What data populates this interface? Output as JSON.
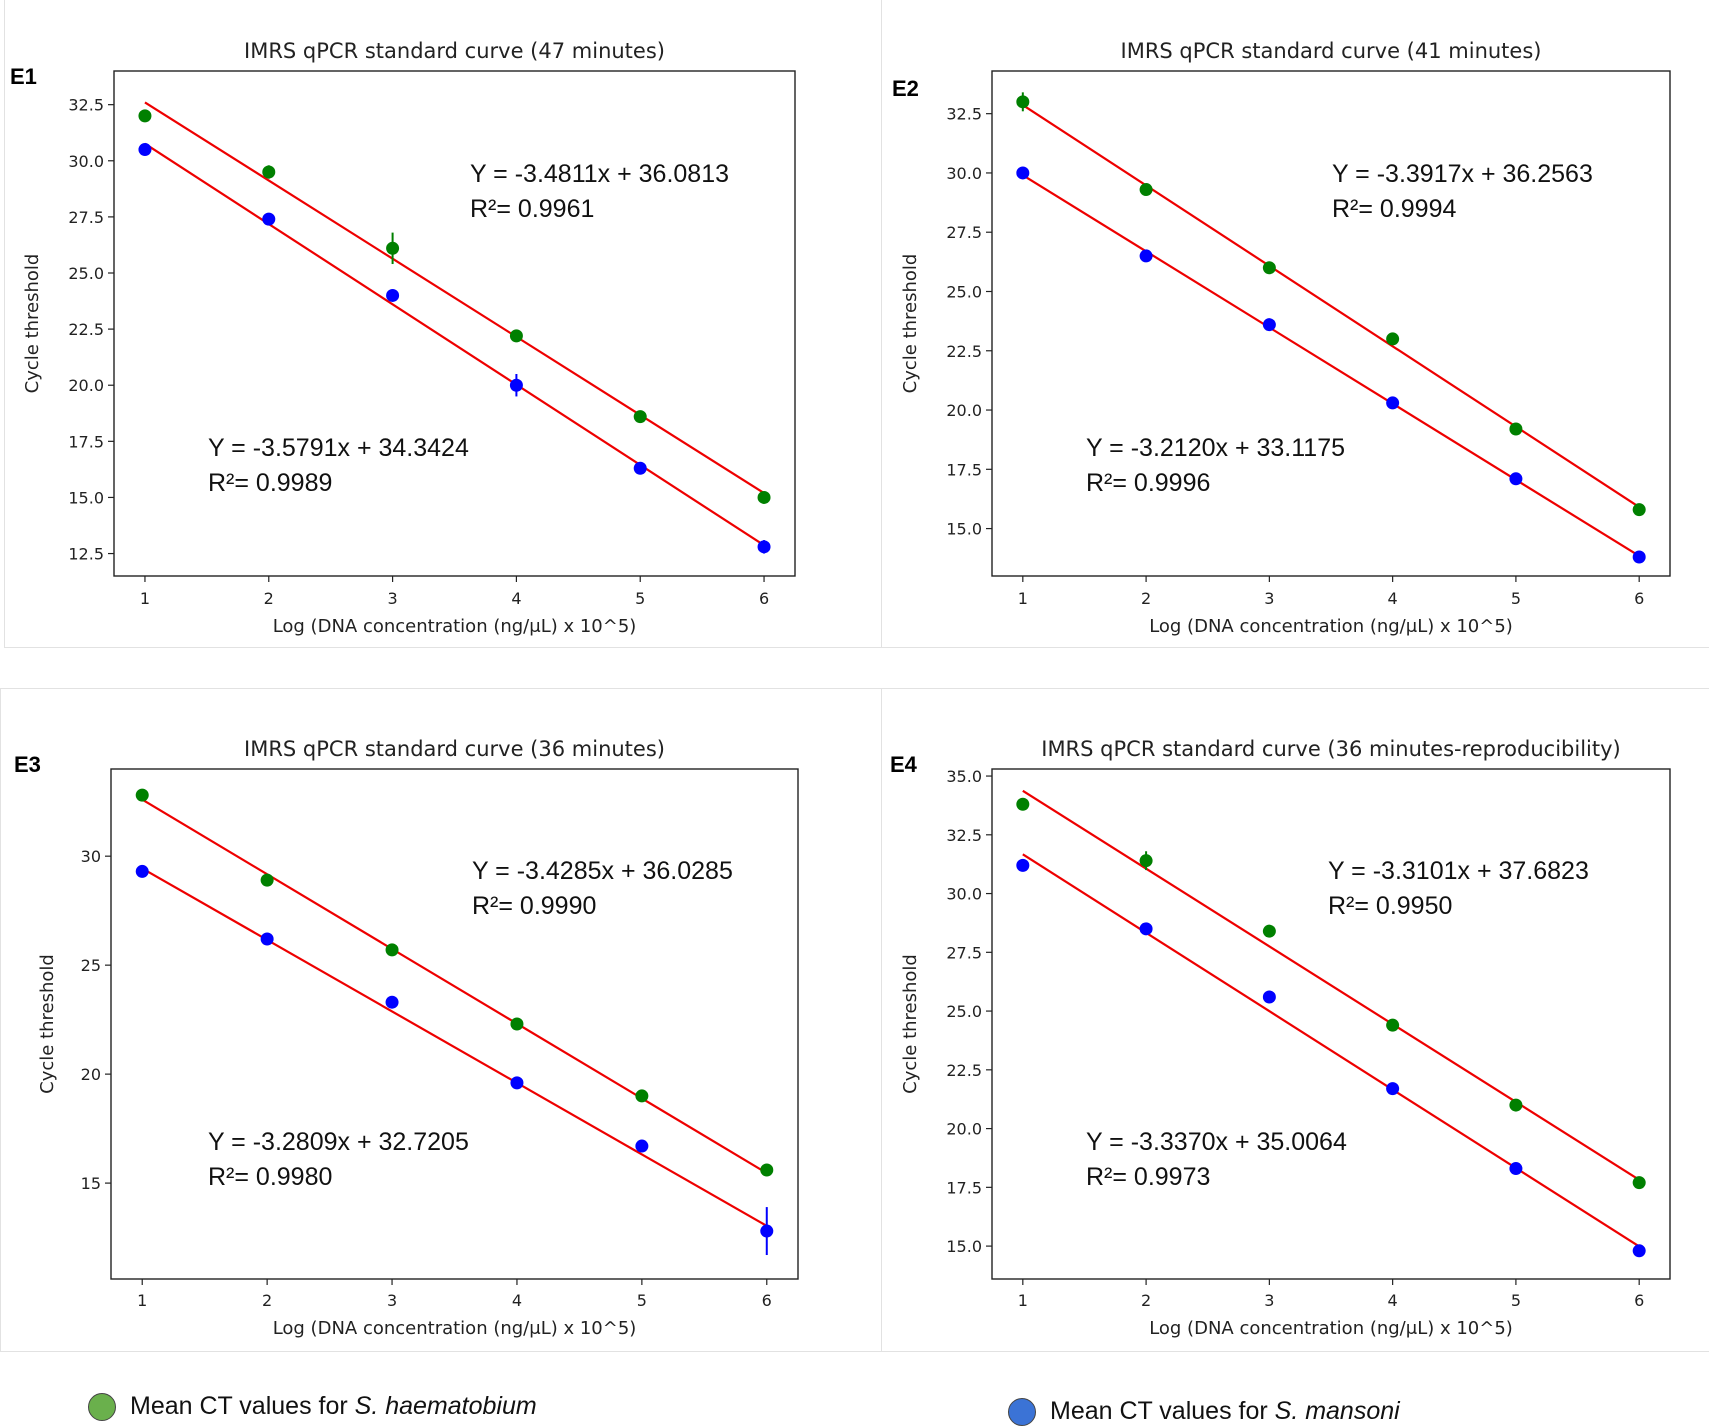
{
  "colors": {
    "haematobium": "#008000",
    "mansoni": "#0000ff",
    "fit": "#ee0000",
    "legend_haematobium": "#6ab04c",
    "legend_mansoni": "#3b73d6"
  },
  "legend": {
    "haematobium_prefix": "Mean CT values for ",
    "haematobium_species": "S. haematobium",
    "mansoni_prefix": "Mean CT values for ",
    "mansoni_species": "S. mansoni"
  },
  "chart_data": [
    {
      "panel": "E1",
      "type": "scatter",
      "title": "IMRS qPCR standard curve (47 minutes)",
      "xlabel": "Log (DNA concentration (ng/μL) x 10^5)",
      "ylabel": "Cycle threshold",
      "xlim": [
        0.75,
        6.25
      ],
      "ylim": [
        11.5,
        34.0
      ],
      "yticks": [
        12.5,
        15.0,
        17.5,
        20.0,
        22.5,
        25.0,
        27.5,
        30.0,
        32.5
      ],
      "ydec": 1,
      "xticks": [
        1,
        2,
        3,
        4,
        5,
        6
      ],
      "series": [
        {
          "name": "S. haematobium",
          "color": "haematobium",
          "x": [
            1,
            2,
            3,
            4,
            5,
            6
          ],
          "y": [
            32.0,
            29.5,
            26.1,
            22.2,
            18.6,
            15.0
          ],
          "err": [
            0.2,
            0.3,
            0.7,
            0.2,
            0.2,
            0.2
          ],
          "slope": -3.4811,
          "intercept": 36.0813,
          "eq_label": "Y = -3.4811x + 36.0813",
          "r2_label": "R²= 0.9961"
        },
        {
          "name": "S. mansoni",
          "color": "mansoni",
          "x": [
            1,
            2,
            3,
            4,
            5,
            6
          ],
          "y": [
            30.5,
            27.4,
            24.0,
            20.0,
            16.3,
            12.8
          ],
          "err": [
            0.2,
            0.2,
            0.2,
            0.5,
            0.2,
            0.3
          ],
          "slope": -3.5791,
          "intercept": 34.3424,
          "eq_label": "Y = -3.5791x + 34.3424",
          "r2_label": "R²= 0.9989"
        }
      ]
    },
    {
      "panel": "E2",
      "type": "scatter",
      "title": "IMRS qPCR standard curve (41 minutes)",
      "xlabel": "Log (DNA concentration (ng/μL) x 10^5)",
      "ylabel": "Cycle threshold",
      "xlim": [
        0.75,
        6.25
      ],
      "ylim": [
        13.0,
        34.3
      ],
      "yticks": [
        15.0,
        17.5,
        20.0,
        22.5,
        25.0,
        27.5,
        30.0,
        32.5
      ],
      "ydec": 1,
      "xticks": [
        1,
        2,
        3,
        4,
        5,
        6
      ],
      "series": [
        {
          "name": "S. haematobium",
          "color": "haematobium",
          "x": [
            1,
            2,
            3,
            4,
            5,
            6
          ],
          "y": [
            33.0,
            29.3,
            26.0,
            23.0,
            19.2,
            15.8
          ],
          "err": [
            0.4,
            0.2,
            0.2,
            0.2,
            0.2,
            0.2
          ],
          "slope": -3.3917,
          "intercept": 36.2563,
          "eq_label": "Y = -3.3917x + 36.2563",
          "r2_label": "R²= 0.9994"
        },
        {
          "name": "S. mansoni",
          "color": "mansoni",
          "x": [
            1,
            2,
            3,
            4,
            5,
            6
          ],
          "y": [
            30.0,
            26.5,
            23.6,
            20.3,
            17.1,
            13.8
          ],
          "err": [
            0.2,
            0.2,
            0.2,
            0.2,
            0.2,
            0.2
          ],
          "slope": -3.212,
          "intercept": 33.1175,
          "eq_label": "Y = -3.2120x + 33.1175",
          "r2_label": "R²= 0.9996"
        }
      ]
    },
    {
      "panel": "E3",
      "type": "scatter",
      "title": "IMRS qPCR standard curve (36 minutes)",
      "xlabel": "Log (DNA concentration (ng/μL) x 10^5)",
      "ylabel": "Cycle threshold",
      "xlim": [
        0.75,
        6.25
      ],
      "ylim": [
        10.6,
        34.0
      ],
      "yticks": [
        15,
        20,
        25,
        30
      ],
      "ydec": 0,
      "xticks": [
        1,
        2,
        3,
        4,
        5,
        6
      ],
      "series": [
        {
          "name": "S. haematobium",
          "color": "haematobium",
          "x": [
            1,
            2,
            3,
            4,
            5,
            6
          ],
          "y": [
            32.8,
            28.9,
            25.7,
            22.3,
            19.0,
            15.6
          ],
          "err": [
            0.2,
            0.2,
            0.2,
            0.2,
            0.2,
            0.2
          ],
          "slope": -3.4285,
          "intercept": 36.0285,
          "eq_label": "Y = -3.4285x + 36.0285",
          "r2_label": "R²= 0.9990"
        },
        {
          "name": "S. mansoni",
          "color": "mansoni",
          "x": [
            1,
            2,
            3,
            4,
            5,
            6
          ],
          "y": [
            29.3,
            26.2,
            23.3,
            19.6,
            16.7,
            12.8
          ],
          "err": [
            0.2,
            0.2,
            0.2,
            0.2,
            0.2,
            1.1
          ],
          "slope": -3.2809,
          "intercept": 32.7205,
          "eq_label": "Y = -3.2809x + 32.7205",
          "r2_label": "R²= 0.9980"
        }
      ]
    },
    {
      "panel": "E4",
      "type": "scatter",
      "title": "IMRS qPCR standard curve (36 minutes-reproducibility)",
      "xlabel": "Log (DNA concentration (ng/μL) x 10^5)",
      "ylabel": "Cycle threshold",
      "xlim": [
        0.75,
        6.25
      ],
      "ylim": [
        13.6,
        35.3
      ],
      "yticks": [
        15.0,
        17.5,
        20.0,
        22.5,
        25.0,
        27.5,
        30.0,
        32.5,
        35.0
      ],
      "ydec": 1,
      "xticks": [
        1,
        2,
        3,
        4,
        5,
        6
      ],
      "series": [
        {
          "name": "S. haematobium",
          "color": "haematobium",
          "x": [
            1,
            2,
            3,
            4,
            5,
            6
          ],
          "y": [
            33.8,
            31.4,
            28.4,
            24.4,
            21.0,
            17.7
          ],
          "err": [
            0.2,
            0.4,
            0.2,
            0.2,
            0.2,
            0.2
          ],
          "slope": -3.3101,
          "intercept": 37.6823,
          "eq_label": "Y = -3.3101x + 37.6823",
          "r2_label": "R²= 0.9950"
        },
        {
          "name": "S. mansoni",
          "color": "mansoni",
          "x": [
            1,
            2,
            3,
            4,
            5,
            6
          ],
          "y": [
            31.2,
            28.5,
            25.6,
            21.7,
            18.3,
            14.8
          ],
          "err": [
            0.2,
            0.2,
            0.2,
            0.2,
            0.2,
            0.2
          ],
          "slope": -3.337,
          "intercept": 35.0064,
          "eq_label": "Y = -3.3370x + 35.0064",
          "r2_label": "R²= 0.9973"
        }
      ]
    }
  ]
}
